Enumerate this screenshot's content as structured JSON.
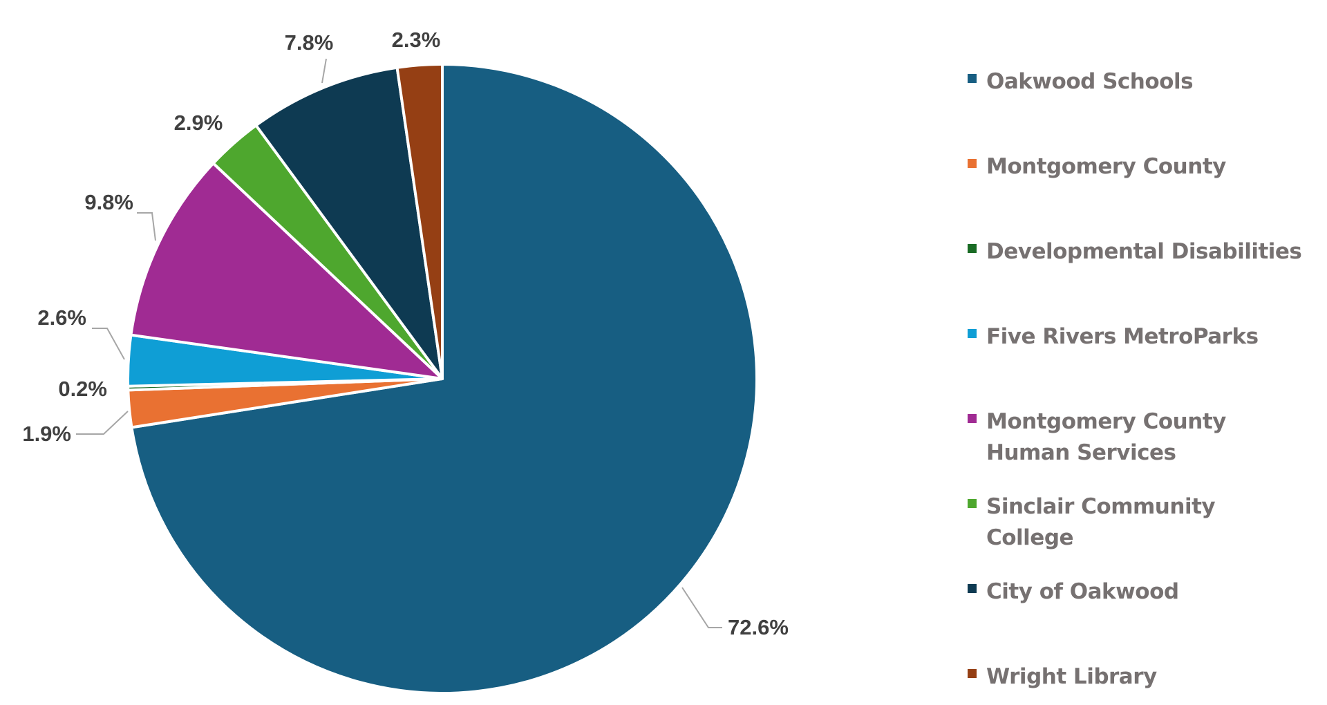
{
  "chart_data": {
    "type": "pie",
    "title": "",
    "categories": [
      "Oakwood Schools",
      "Montgomery County",
      "Developmental Disabilities",
      "Five Rivers MetroParks",
      "Montgomery County Human Services",
      "Sinclair Community College",
      "City of Oakwood",
      "Wright Library"
    ],
    "values": [
      72.6,
      1.9,
      0.2,
      2.6,
      9.8,
      2.9,
      7.8,
      2.3
    ],
    "data_labels": [
      "72.6%",
      "1.9%",
      "0.2%",
      "2.6%",
      "9.8%",
      "2.9%",
      "7.8%",
      "2.3%"
    ],
    "colors": [
      "#175E82",
      "#E97132",
      "#196B24",
      "#0F9ED5",
      "#A02B93",
      "#4EA72E",
      "#0E3A52",
      "#953F14"
    ],
    "legend_position": "right",
    "start_angle": "12 o'clock",
    "direction": "clockwise"
  }
}
